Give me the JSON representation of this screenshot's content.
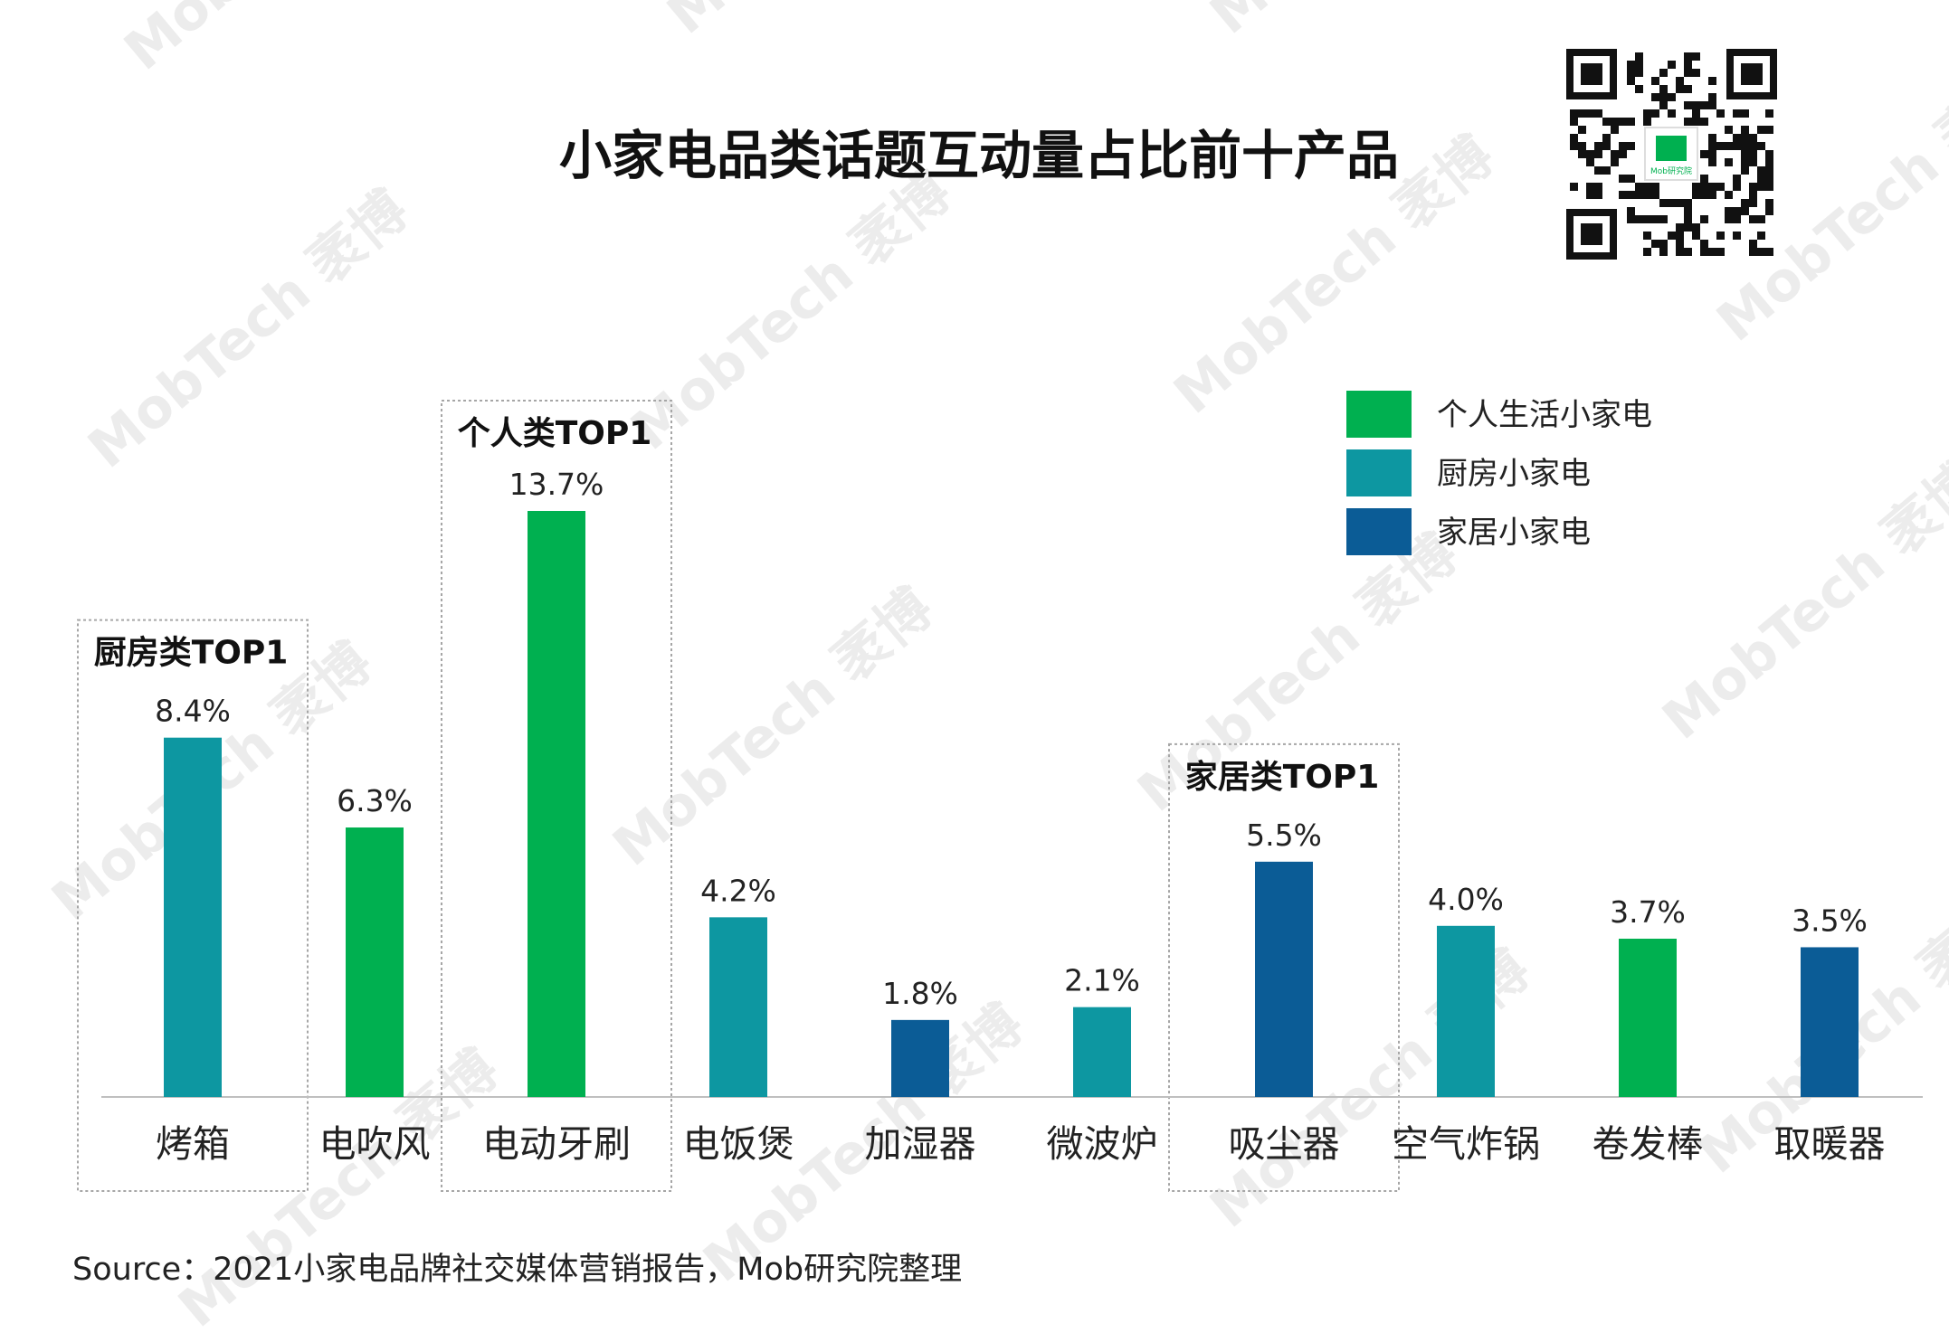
{
  "title": "小家电品类话题互动量占比前十产品",
  "source": "Source：2021小家电品牌社交媒体营销报告，Mob研究院整理",
  "watermark_text": "MobTech 袤博",
  "qr_logo_text": "Mob研究院",
  "legend": [
    {
      "label": "个人生活小家电",
      "color": "#00b050"
    },
    {
      "label": "厨房小家电",
      "color": "#0d97a1"
    },
    {
      "label": "家居小家电",
      "color": "#0b5c96"
    }
  ],
  "top_boxes": [
    {
      "label": "厨房类TOP1",
      "category_index": 0
    },
    {
      "label": "个人类TOP1",
      "category_index": 2
    },
    {
      "label": "家居类TOP1",
      "category_index": 6
    }
  ],
  "chart_data": {
    "type": "bar",
    "categories": [
      "烤箱",
      "电吹风",
      "电动牙刷",
      "电饭煲",
      "加湿器",
      "微波炉",
      "吸尘器",
      "空气炸锅",
      "卷发棒",
      "取暖器"
    ],
    "values": [
      8.4,
      6.3,
      13.7,
      4.2,
      1.8,
      2.1,
      5.5,
      4.0,
      3.7,
      3.5
    ],
    "value_labels": [
      "8.4%",
      "6.3%",
      "13.7%",
      "4.2%",
      "1.8%",
      "2.1%",
      "5.5%",
      "4.0%",
      "3.7%",
      "3.5%"
    ],
    "groups": [
      "厨房小家电",
      "个人生活小家电",
      "个人生活小家电",
      "厨房小家电",
      "家居小家电",
      "厨房小家电",
      "家居小家电",
      "厨房小家电",
      "个人生活小家电",
      "家居小家电"
    ],
    "unit": "%",
    "grid": false,
    "legend_position": "top-right"
  }
}
